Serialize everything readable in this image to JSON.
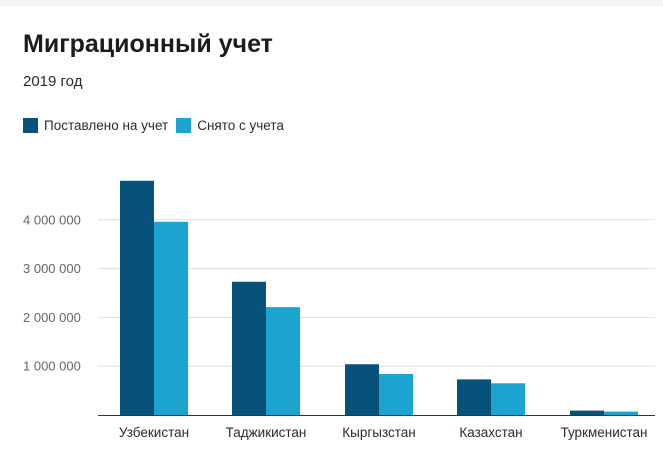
{
  "title": "Миграционный учет",
  "subtitle": "2019 год",
  "legend": [
    {
      "label": "Поставлено на учет",
      "color": "#07527a"
    },
    {
      "label": "Снято с учета",
      "color": "#1ba4d0"
    }
  ],
  "chart_data": {
    "type": "bar",
    "title": "Миграционный учет",
    "subtitle": "2019 год",
    "categories": [
      "Узбекистан",
      "Таджикистан",
      "Кыргызстан",
      "Казахстан",
      "Туркменистан"
    ],
    "series": [
      {
        "name": "Поставлено на учет",
        "color": "#07527a",
        "values": [
          4800000,
          2730000,
          1040000,
          730000,
          90000
        ]
      },
      {
        "name": "Снято с учета",
        "color": "#1ba4d0",
        "values": [
          3960000,
          2210000,
          840000,
          650000,
          70000
        ]
      }
    ],
    "yticks": [
      1000000,
      2000000,
      3000000,
      4000000
    ],
    "yticklabels": [
      "1 000 000",
      "2 000 000",
      "3 000 000",
      "4 000 000"
    ],
    "ylim": [
      0,
      4970000
    ],
    "grid": true,
    "legend_position": "top-left",
    "xlabel": "",
    "ylabel": ""
  }
}
